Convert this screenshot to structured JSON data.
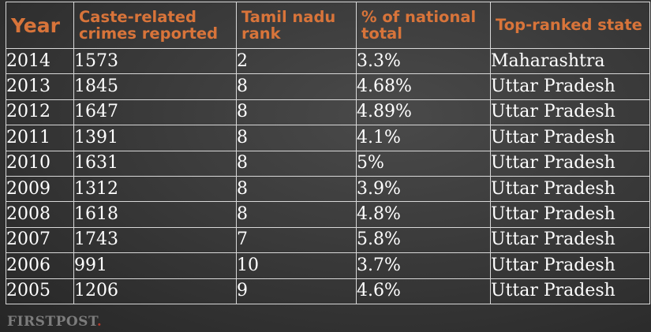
{
  "table": {
    "headers": {
      "year": "Year",
      "crimes": "Caste-related crimes reported",
      "rank": "Tamil nadu rank",
      "pct": "% of national total",
      "state": "Top-ranked state"
    },
    "rows": [
      {
        "year": "2014",
        "crimes": "1573",
        "rank": "2",
        "pct": "3.3%",
        "state": "Maharashtra"
      },
      {
        "year": "2013",
        "crimes": "1845",
        "rank": "8",
        "pct": "4.68%",
        "state": "Uttar Pradesh"
      },
      {
        "year": "2012",
        "crimes": "1647",
        "rank": "8",
        "pct": "4.89%",
        "state": "Uttar Pradesh"
      },
      {
        "year": "2011",
        "crimes": "1391",
        "rank": "8",
        "pct": "4.1%",
        "state": "Uttar Pradesh"
      },
      {
        "year": "2010",
        "crimes": "1631",
        "rank": "8",
        "pct": "5%",
        "state": "Uttar Pradesh"
      },
      {
        "year": "2009",
        "crimes": "1312",
        "rank": "8",
        "pct": "3.9%",
        "state": "Uttar Pradesh"
      },
      {
        "year": "2008",
        "crimes": "1618",
        "rank": "8",
        "pct": "4.8%",
        "state": "Uttar Pradesh"
      },
      {
        "year": "2007",
        "crimes": "1743",
        "rank": "7",
        "pct": "5.8%",
        "state": "Uttar Pradesh"
      },
      {
        "year": "2006",
        "crimes": "991",
        "rank": "10",
        "pct": "3.7%",
        "state": "Uttar Pradesh"
      },
      {
        "year": "2005",
        "crimes": "1206",
        "rank": "9",
        "pct": "4.6%",
        "state": "Uttar Pradesh"
      }
    ]
  },
  "brand": {
    "name": "FIRSTPOST",
    "dot": "."
  },
  "colors": {
    "header_text": "#d8743a",
    "cell_text": "#ffffff",
    "border": "#d8d8d8",
    "brand_dot": "#b33a2c"
  }
}
